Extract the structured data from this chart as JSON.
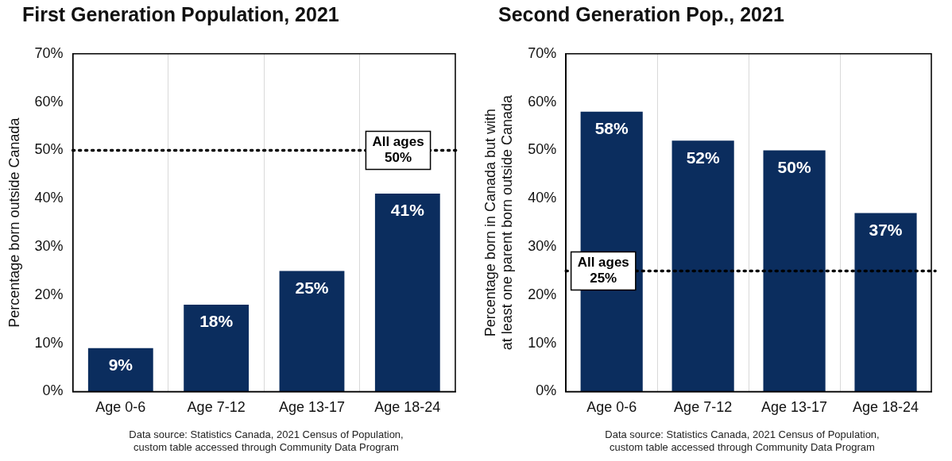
{
  "chart_data": [
    {
      "type": "bar",
      "title": "First Generation Population, 2021",
      "ylabel": "Percentage born outside Canada",
      "categories": [
        "Age 0-6",
        "Age 7-12",
        "Age 13-17",
        "Age 18-24"
      ],
      "values": [
        9,
        18,
        25,
        41
      ],
      "color": "#0b2d5e",
      "value_labels": [
        "9%",
        "18%",
        "25%",
        "41%"
      ],
      "ylim": [
        0,
        70
      ],
      "yticks": [
        {
          "value": 0,
          "label": "0%"
        },
        {
          "value": 10,
          "label": "10%"
        },
        {
          "value": 20,
          "label": "20%"
        },
        {
          "value": 30,
          "label": "30%"
        },
        {
          "value": 40,
          "label": "40%"
        },
        {
          "value": 50,
          "label": "50%"
        },
        {
          "value": 60,
          "label": "60%"
        },
        {
          "value": 70,
          "label": "70%"
        }
      ],
      "grid": "x",
      "legend": false,
      "ref_lines": [
        {
          "axis": "y",
          "value": 50,
          "label": "All ages\n50%",
          "color": "#000000",
          "line_style": "dotted"
        }
      ],
      "annotations": [
        "Data source: Statistics Canada, 2021 Census of Population,\ncustom table accessed through Community Data Program"
      ]
    },
    {
      "type": "bar",
      "title": "Second Generation Pop., 2021",
      "ylabel": "Percentage born in Canada but with\nat least one parent born outside Canada",
      "categories": [
        "Age 0-6",
        "Age 7-12",
        "Age 13-17",
        "Age 18-24"
      ],
      "values": [
        58,
        52,
        50,
        37
      ],
      "color": "#0b2d5e",
      "value_labels": [
        "58%",
        "52%",
        "50%",
        "37%"
      ],
      "ylim": [
        0,
        70
      ],
      "yticks": [
        {
          "value": 0,
          "label": "0%"
        },
        {
          "value": 10,
          "label": "10%"
        },
        {
          "value": 20,
          "label": "20%"
        },
        {
          "value": 30,
          "label": "30%"
        },
        {
          "value": 40,
          "label": "40%"
        },
        {
          "value": 50,
          "label": "50%"
        },
        {
          "value": 60,
          "label": "60%"
        },
        {
          "value": 70,
          "label": "70%"
        }
      ],
      "grid": "x",
      "legend": false,
      "ref_lines": [
        {
          "axis": "y",
          "value": 25,
          "label": "All ages\n25%",
          "color": "#000000",
          "line_style": "dotted"
        }
      ],
      "annotations": [
        "Data source: Statistics Canada, 2021 Census of Population,\ncustom table accessed through Community Data Program"
      ]
    }
  ]
}
